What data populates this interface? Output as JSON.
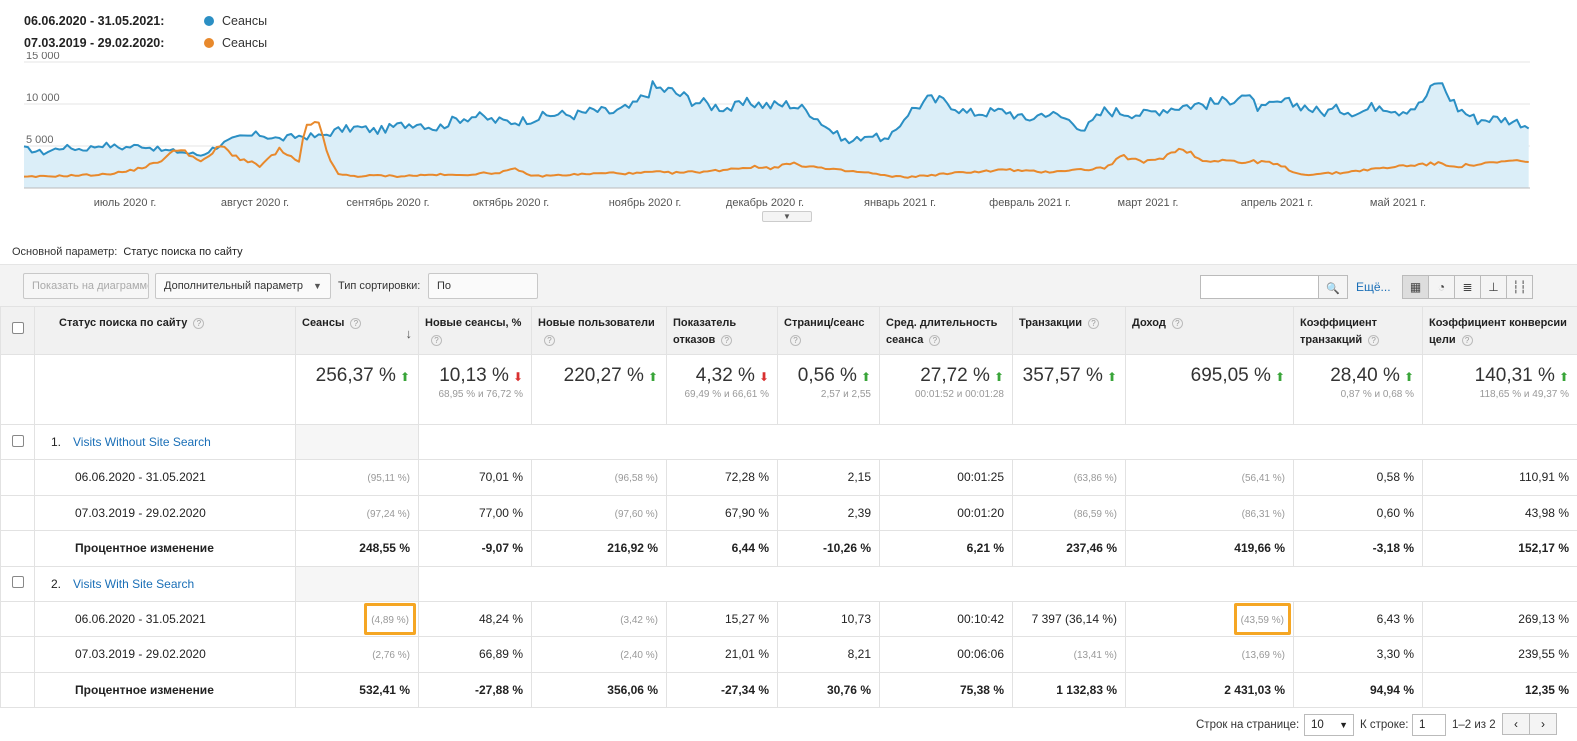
{
  "legend": [
    {
      "range": "06.06.2020 - 31.05.2021:",
      "name": "Сеансы",
      "color": "#2b8fc4"
    },
    {
      "range": "07.03.2019 - 29.02.2020:",
      "name": "Сеансы",
      "color": "#e8892c"
    }
  ],
  "chart_data": {
    "type": "line",
    "yticks": [
      "15 000",
      "10 000",
      "5 000"
    ],
    "ylim": [
      0,
      15000
    ],
    "xticks": [
      "июль 2020 г.",
      "август 2020 г.",
      "сентябрь 2020 г.",
      "октябрь 2020 г.",
      "ноябрь 2020 г.",
      "декабрь 2020 г.",
      "январь 2021 г.",
      "февраль 2021 г.",
      "март 2021 г.",
      "апрель 2021 г.",
      "май 2021 г."
    ],
    "series": [
      {
        "name": "Сеансы",
        "color": "#2b8fc4",
        "area": true,
        "keypoints": [
          [
            0,
            4700
          ],
          [
            15,
            4200
          ],
          [
            30,
            4900
          ],
          [
            45,
            4600
          ],
          [
            60,
            5200
          ],
          [
            75,
            4800
          ],
          [
            90,
            5100
          ],
          [
            105,
            4500
          ],
          [
            120,
            4300
          ],
          [
            135,
            3900
          ],
          [
            150,
            5200
          ],
          [
            165,
            6000
          ],
          [
            180,
            6400
          ],
          [
            195,
            5800
          ],
          [
            210,
            6200
          ],
          [
            225,
            6100
          ],
          [
            240,
            6900
          ],
          [
            255,
            7200
          ],
          [
            270,
            6800
          ],
          [
            285,
            7400
          ],
          [
            300,
            7800
          ],
          [
            315,
            7100
          ],
          [
            330,
            8200
          ],
          [
            345,
            8600
          ],
          [
            360,
            8000
          ],
          [
            375,
            7900
          ],
          [
            390,
            8300
          ],
          [
            405,
            8800
          ],
          [
            420,
            8700
          ],
          [
            435,
            9200
          ],
          [
            450,
            9000
          ],
          [
            465,
            9700
          ],
          [
            480,
            12000
          ],
          [
            495,
            11500
          ],
          [
            510,
            10500
          ],
          [
            525,
            9800
          ],
          [
            540,
            9500
          ],
          [
            555,
            10200
          ],
          [
            570,
            9800
          ],
          [
            585,
            10000
          ],
          [
            600,
            9100
          ],
          [
            615,
            7000
          ],
          [
            630,
            5400
          ],
          [
            645,
            6400
          ],
          [
            660,
            5600
          ],
          [
            675,
            9000
          ],
          [
            690,
            10500
          ],
          [
            705,
            10300
          ],
          [
            720,
            8900
          ],
          [
            735,
            9000
          ],
          [
            750,
            9200
          ],
          [
            765,
            8100
          ],
          [
            780,
            9000
          ],
          [
            795,
            8300
          ],
          [
            810,
            7000
          ],
          [
            825,
            9200
          ],
          [
            840,
            9000
          ],
          [
            855,
            8800
          ],
          [
            870,
            9400
          ],
          [
            885,
            9800
          ],
          [
            900,
            10000
          ],
          [
            915,
            10200
          ],
          [
            930,
            11200
          ],
          [
            945,
            9300
          ],
          [
            960,
            10200
          ],
          [
            975,
            9900
          ],
          [
            990,
            9000
          ],
          [
            1005,
            9400
          ],
          [
            1020,
            9000
          ],
          [
            1035,
            10000
          ],
          [
            1050,
            9200
          ],
          [
            1065,
            9800
          ],
          [
            1080,
            12800
          ],
          [
            1095,
            9500
          ],
          [
            1110,
            8100
          ],
          [
            1125,
            8300
          ],
          [
            1140,
            7900
          ],
          [
            1150,
            7300
          ]
        ]
      },
      {
        "name": "Сеансы",
        "color": "#e8892c",
        "area": false,
        "keypoints": [
          [
            0,
            1300
          ],
          [
            20,
            1400
          ],
          [
            40,
            1500
          ],
          [
            60,
            1600
          ],
          [
            80,
            2000
          ],
          [
            100,
            2900
          ],
          [
            120,
            4800
          ],
          [
            135,
            3000
          ],
          [
            150,
            5000
          ],
          [
            165,
            3500
          ],
          [
            180,
            2600
          ],
          [
            195,
            4500
          ],
          [
            210,
            3000
          ],
          [
            215,
            7200
          ],
          [
            225,
            8200
          ],
          [
            230,
            4500
          ],
          [
            240,
            1600
          ],
          [
            255,
            1400
          ],
          [
            270,
            1500
          ],
          [
            285,
            1400
          ],
          [
            300,
            1500
          ],
          [
            315,
            1600
          ],
          [
            330,
            1500
          ],
          [
            345,
            1700
          ],
          [
            360,
            1800
          ],
          [
            375,
            2200
          ],
          [
            390,
            1400
          ],
          [
            405,
            1500
          ],
          [
            420,
            1600
          ],
          [
            435,
            1700
          ],
          [
            450,
            1800
          ],
          [
            465,
            1700
          ],
          [
            480,
            1900
          ],
          [
            495,
            1800
          ],
          [
            510,
            1900
          ],
          [
            525,
            2000
          ],
          [
            540,
            2300
          ],
          [
            555,
            2500
          ],
          [
            570,
            2400
          ],
          [
            585,
            2900
          ],
          [
            600,
            2600
          ],
          [
            615,
            2200
          ],
          [
            630,
            2000
          ],
          [
            645,
            1800
          ],
          [
            660,
            1400
          ],
          [
            675,
            1300
          ],
          [
            690,
            1500
          ],
          [
            705,
            1700
          ],
          [
            720,
            1900
          ],
          [
            735,
            2000
          ],
          [
            750,
            2200
          ],
          [
            765,
            2000
          ],
          [
            780,
            1900
          ],
          [
            795,
            2100
          ],
          [
            810,
            2200
          ],
          [
            825,
            2400
          ],
          [
            840,
            3800
          ],
          [
            855,
            3000
          ],
          [
            870,
            3700
          ],
          [
            885,
            4800
          ],
          [
            900,
            3200
          ],
          [
            915,
            3400
          ],
          [
            930,
            3000
          ],
          [
            945,
            3200
          ],
          [
            960,
            2600
          ],
          [
            975,
            1600
          ],
          [
            990,
            1700
          ],
          [
            1005,
            1800
          ],
          [
            1020,
            2100
          ],
          [
            1035,
            2300
          ],
          [
            1050,
            2600
          ],
          [
            1065,
            2800
          ],
          [
            1080,
            2900
          ],
          [
            1095,
            2600
          ],
          [
            1110,
            2800
          ],
          [
            1125,
            3000
          ],
          [
            1140,
            3300
          ],
          [
            1150,
            2900
          ]
        ]
      }
    ]
  },
  "chart_toggle": "▼",
  "primary_dim": {
    "label": "Основной параметр:",
    "value": "Статус поиска по сайту"
  },
  "toolbar": {
    "plot_btn": "Показать на диаграмме",
    "secondary_dim": "Дополнительный параметр",
    "sort_label": "Тип сортировки:",
    "sort_value": "По умолчанию",
    "more": "Ещё...",
    "search_icon": "🔍"
  },
  "columns": [
    {
      "label": "Статус поиска по сайту"
    },
    {
      "label": "Сеансы"
    },
    {
      "label": "Новые сеансы, %"
    },
    {
      "label": "Новые пользователи"
    },
    {
      "label": "Показатель отказов"
    },
    {
      "label": "Страниц/сеанс"
    },
    {
      "label": "Сред. длительность сеанса"
    },
    {
      "label": "Транзакции"
    },
    {
      "label": "Доход"
    },
    {
      "label": "Коэффициент транзакций"
    },
    {
      "label": "Коэффициент конверсии цели"
    }
  ],
  "totals": [
    {
      "value": "256,37 %",
      "dir": "up",
      "sub": ""
    },
    {
      "value": "10,13 %",
      "dir": "down",
      "sub": "68,95 % и 76,72 %"
    },
    {
      "value": "220,27 %",
      "dir": "up",
      "sub": ""
    },
    {
      "value": "4,32 %",
      "dir": "down",
      "sub": "69,49 % и 66,61 %"
    },
    {
      "value": "0,56 %",
      "dir": "up",
      "sub": "2,57 и 2,55"
    },
    {
      "value": "27,72 %",
      "dir": "up",
      "sub": "00:01:52 и 00:01:28"
    },
    {
      "value": "357,57 %",
      "dir": "up",
      "sub": ""
    },
    {
      "value": "695,05 %",
      "dir": "up",
      "sub": ""
    },
    {
      "value": "28,40 %",
      "dir": "up",
      "sub": "0,87 % и 0,68 %"
    },
    {
      "value": "140,31 %",
      "dir": "up",
      "sub": "118,65 % и 49,37 %"
    }
  ],
  "groups": [
    {
      "index": "1.",
      "name": "Visits Without Site Search",
      "rows": [
        {
          "label": "06.06.2020 - 31.05.2021",
          "bold": false,
          "cells": [
            "(95,11 %)",
            "70,01 %",
            "(96,58 %)",
            "72,28 %",
            "2,15",
            "00:01:25",
            "(63,86 %)",
            "(56,41 %)",
            "0,58 %",
            "110,91 %"
          ]
        },
        {
          "label": "07.03.2019 - 29.02.2020",
          "bold": false,
          "cells": [
            "(97,24 %)",
            "77,00 %",
            "(97,60 %)",
            "67,90 %",
            "2,39",
            "00:01:20",
            "(86,59 %)",
            "(86,31 %)",
            "0,60 %",
            "43,98 %"
          ]
        },
        {
          "label": "Процентное изменение",
          "bold": true,
          "cells": [
            "248,55 %",
            "-9,07 %",
            "216,92 %",
            "6,44 %",
            "-10,26 %",
            "6,21 %",
            "237,46 %",
            "419,66 %",
            "-3,18 %",
            "152,17 %"
          ]
        }
      ]
    },
    {
      "index": "2.",
      "name": "Visits With Site Search",
      "rows": [
        {
          "label": "06.06.2020 - 31.05.2021",
          "bold": false,
          "cells": [
            "(4,89 %)",
            "48,24 %",
            "(3,42 %)",
            "15,27 %",
            "10,73",
            "00:10:42",
            "7 397 (36,14 %)",
            "(43,59 %)",
            "6,43 %",
            "269,13 %"
          ]
        },
        {
          "label": "07.03.2019 - 29.02.2020",
          "bold": false,
          "cells": [
            "(2,76 %)",
            "66,89 %",
            "(2,40 %)",
            "21,01 %",
            "8,21",
            "00:06:06",
            "(13,41 %)",
            "(13,69 %)",
            "3,30 %",
            "239,55 %"
          ]
        },
        {
          "label": "Процентное изменение",
          "bold": true,
          "cells": [
            "532,41 %",
            "-27,88 %",
            "356,06 %",
            "-27,34 %",
            "30,76 %",
            "75,38 %",
            "1 132,83 %",
            "2 431,03 %",
            "94,94 %",
            "12,35 %"
          ]
        }
      ]
    }
  ],
  "pager": {
    "rows_label": "Строк на странице:",
    "rows_value": "10",
    "goto_label": "К строке:",
    "goto_value": "1",
    "range": "1–2 из 2",
    "prev": "‹",
    "next": "›"
  }
}
